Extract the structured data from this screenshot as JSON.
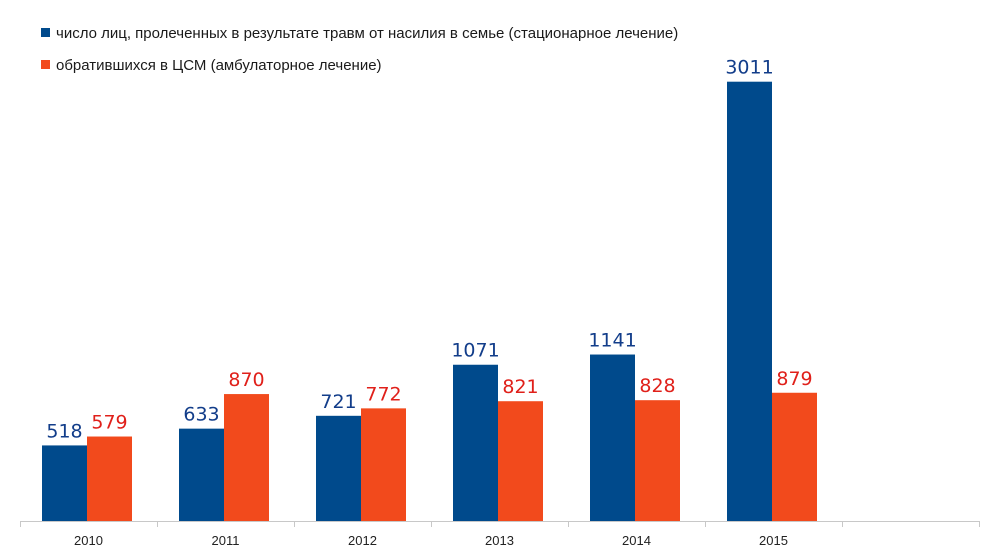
{
  "chart_data": {
    "type": "bar",
    "categories": [
      "2010",
      "2011",
      "2012",
      "2013",
      "2014",
      "2015"
    ],
    "series": [
      {
        "name": "число лиц, пролеченных в результате травм от насилия в семье (стационарное лечение)",
        "color": "#004a8c",
        "label_color": "#123d8a",
        "values": [
          518,
          633,
          721,
          1071,
          1141,
          3011
        ]
      },
      {
        "name": "обратившихся в ЦСМ (амбулаторное лечение)",
        "color": "#f24a1c",
        "label_color": "#e0201a",
        "values": [
          579,
          870,
          772,
          821,
          828,
          879
        ]
      }
    ],
    "data_labels": true,
    "legend_position": "top-left",
    "grid": false
  }
}
